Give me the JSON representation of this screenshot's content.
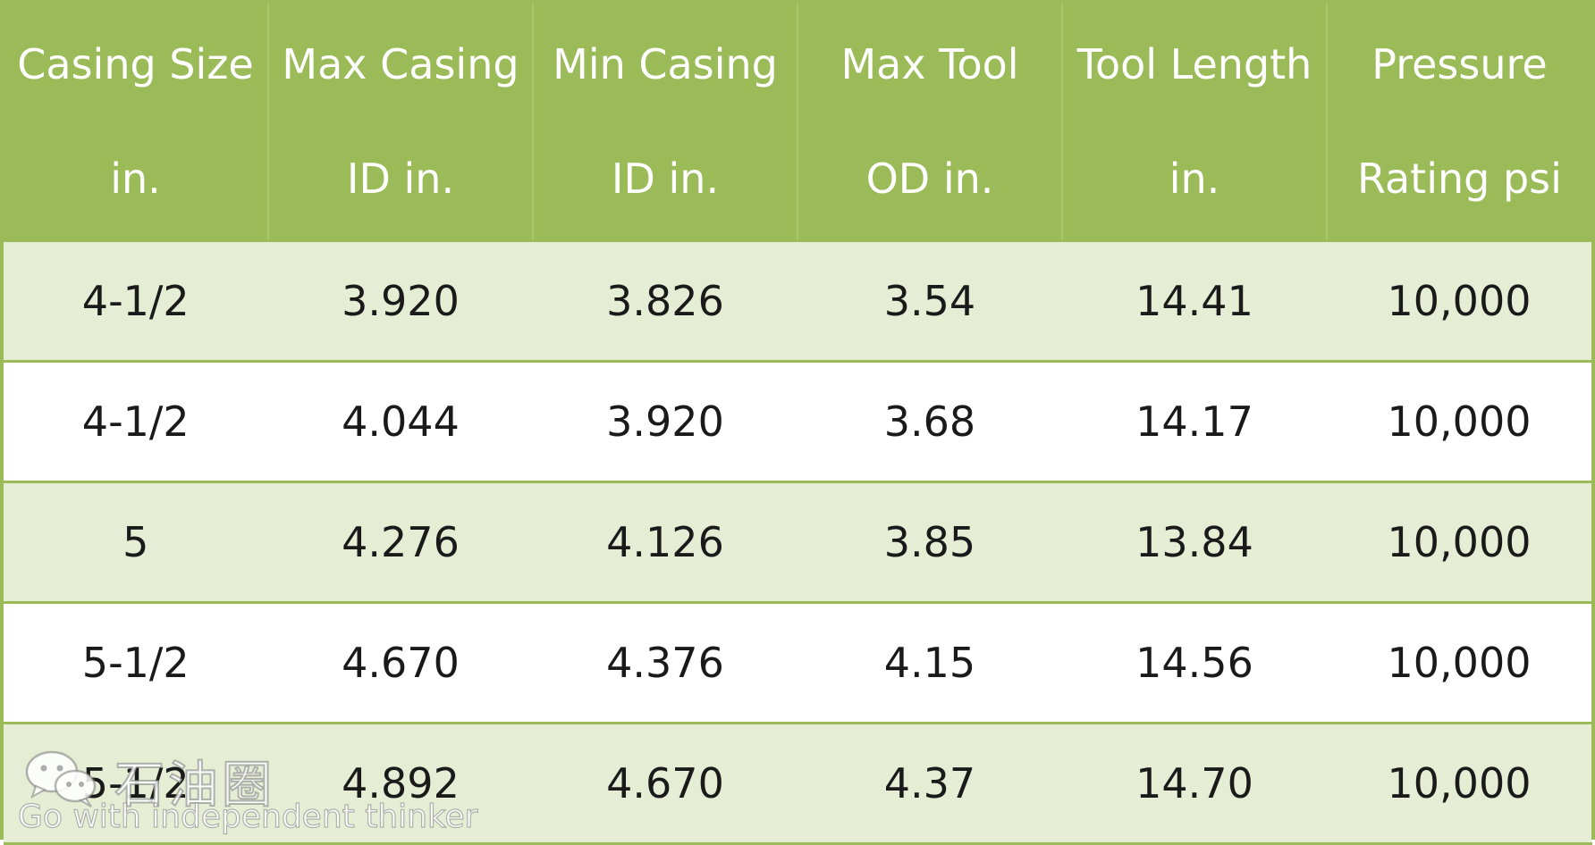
{
  "table": {
    "headers": [
      {
        "line1": "Casing Size",
        "line2": "in."
      },
      {
        "line1": "Max Casing",
        "line2": "ID in."
      },
      {
        "line1": "Min Casing",
        "line2": "ID in."
      },
      {
        "line1": "Max Tool",
        "line2": "OD in."
      },
      {
        "line1": "Tool Length",
        "line2": "in."
      },
      {
        "line1": "Pressure",
        "line2": "Rating psi"
      }
    ],
    "rows": [
      [
        "4-1/2",
        "3.920",
        "3.826",
        "3.54",
        "14.41",
        "10,000"
      ],
      [
        "4-1/2",
        "4.044",
        "3.920",
        "3.68",
        "14.17",
        "10,000"
      ],
      [
        "5",
        "4.276",
        "4.126",
        "3.85",
        "13.84",
        "10,000"
      ],
      [
        "5-1/2",
        "4.670",
        "4.376",
        "4.15",
        "14.56",
        "10,000"
      ],
      [
        "5-1/2",
        "4.892",
        "4.670",
        "4.37",
        "14.70",
        "10,000"
      ]
    ]
  },
  "watermark": {
    "name": "石油圈",
    "tagline": "Go with independent thinker",
    "icon": "wechat-icon"
  },
  "colors": {
    "header_bg": "#9bbb59",
    "header_text": "#ffffff",
    "band_odd": "#e5edd5",
    "band_even": "#ffffff",
    "border": "#9bbb59"
  }
}
